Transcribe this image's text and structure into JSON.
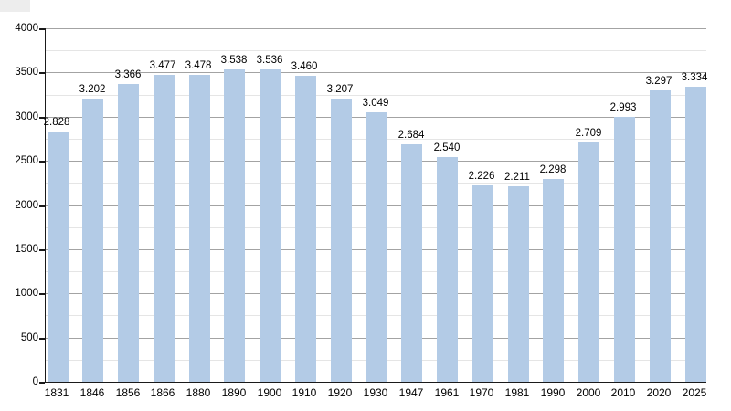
{
  "chart_data": {
    "type": "bar",
    "title": "",
    "xlabel": "",
    "ylabel": "",
    "categories": [
      "1831",
      "1846",
      "1856",
      "1866",
      "1880",
      "1890",
      "1900",
      "1910",
      "1920",
      "1930",
      "1947",
      "1961",
      "1970",
      "1981",
      "1990",
      "2000",
      "2010",
      "2020",
      "2025"
    ],
    "values": [
      2828,
      3202,
      3366,
      3477,
      3478,
      3538,
      3536,
      3460,
      3207,
      3049,
      2684,
      2540,
      2226,
      2211,
      2298,
      2709,
      2993,
      3297,
      3334
    ],
    "value_labels": [
      "2.828",
      "3.202",
      "3.366",
      "3.477",
      "3.478",
      "3.538",
      "3.536",
      "3.460",
      "3.207",
      "3.049",
      "2.684",
      "2.540",
      "2.226",
      "2.211",
      "2.298",
      "2.709",
      "2.993",
      "3.297",
      "3.334"
    ],
    "ylim": [
      0,
      4000
    ],
    "y_major_ticks": [
      0,
      500,
      1000,
      1500,
      2000,
      2500,
      3000,
      3500,
      4000
    ],
    "y_tick_labels": [
      "0",
      "500",
      "1000",
      "1500",
      "2000",
      "2500",
      "3000",
      "3500",
      "4000"
    ],
    "y_minor_step": 250,
    "grid": "on",
    "legend": "none",
    "colors": {
      "bar_fill": "#b3cbe6",
      "major_gridline": "#a3a3a3",
      "minor_gridline": "#e5e5e5",
      "axis": "#1a1a1a",
      "text": "#000000",
      "background": "#ffffff",
      "corner_artifact": "#ededed"
    }
  }
}
